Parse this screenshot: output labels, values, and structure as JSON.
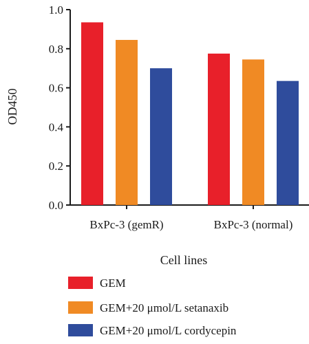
{
  "chart_data": {
    "type": "bar",
    "categories": [
      "BxPc-3 (gemR)",
      "BxPc-3 (normal)"
    ],
    "series": [
      {
        "name": "GEM",
        "values": [
          0.935,
          0.775
        ],
        "color": "#e8202a"
      },
      {
        "name": "GEM+20 μmol/L setanaxib",
        "values": [
          0.845,
          0.745
        ],
        "color": "#f08a24"
      },
      {
        "name": "GEM+20 μmol/L cordycepin",
        "values": [
          0.7,
          0.635
        ],
        "color": "#2f4c9c"
      }
    ],
    "title": "",
    "xlabel": "Cell lines",
    "ylabel": "OD450",
    "ylim": [
      0,
      1.0
    ],
    "yticks": [
      "0.0",
      "0.2",
      "0.4",
      "0.6",
      "0.8",
      "1.0"
    ],
    "grid": false,
    "legend_position": "bottom"
  }
}
